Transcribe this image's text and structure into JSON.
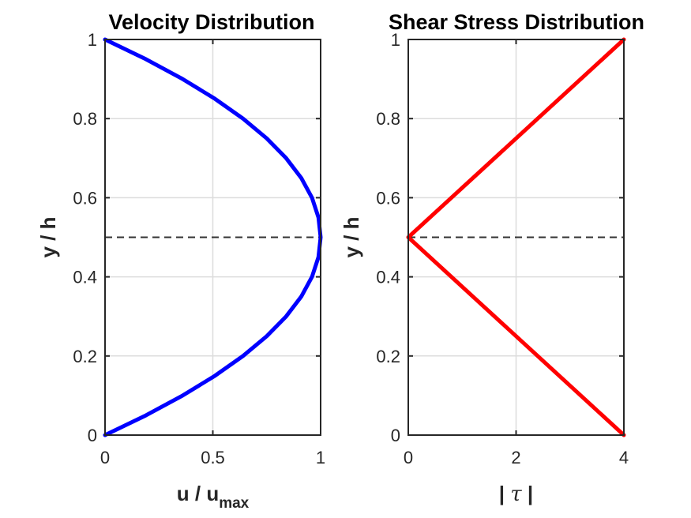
{
  "chart_data": [
    {
      "type": "line",
      "title": "Velocity Distribution",
      "xlabel": "u / u",
      "xlabel_subscript": "max",
      "ylabel": "y / h",
      "xlim": [
        0,
        1
      ],
      "ylim": [
        0,
        1
      ],
      "xticks": [
        "0",
        "0.5",
        "1"
      ],
      "yticks": [
        "0",
        "0.2",
        "0.4",
        "0.6",
        "0.8",
        "1"
      ],
      "grid": true,
      "series": [
        {
          "color": "#0000ff",
          "x": [
            0,
            0.19,
            0.36,
            0.51,
            0.64,
            0.75,
            0.84,
            0.91,
            0.96,
            0.99,
            1,
            0.99,
            0.96,
            0.91,
            0.84,
            0.75,
            0.64,
            0.51,
            0.36,
            0.19,
            0
          ],
          "y": [
            0,
            0.05,
            0.1,
            0.15,
            0.2,
            0.25,
            0.3,
            0.35,
            0.4,
            0.45,
            0.5,
            0.55,
            0.6,
            0.65,
            0.7,
            0.75,
            0.8,
            0.85,
            0.9,
            0.95,
            1
          ]
        }
      ],
      "reference_line": {
        "y": 0.5,
        "style": "dashed",
        "color": "#333333"
      }
    },
    {
      "type": "line",
      "title": "Shear Stress Distribution",
      "xlabel": "| τ |",
      "ylabel": "y / h",
      "xlim": [
        0,
        4
      ],
      "ylim": [
        0,
        1
      ],
      "xticks": [
        "0",
        "2",
        "4"
      ],
      "yticks": [
        "0",
        "0.2",
        "0.4",
        "0.6",
        "0.8",
        "1"
      ],
      "grid": true,
      "series": [
        {
          "color": "#ff0000",
          "x": [
            4,
            0,
            4
          ],
          "y": [
            0,
            0.5,
            1
          ]
        }
      ],
      "reference_line": {
        "y": 0.5,
        "style": "dashed",
        "color": "#333333"
      }
    }
  ]
}
